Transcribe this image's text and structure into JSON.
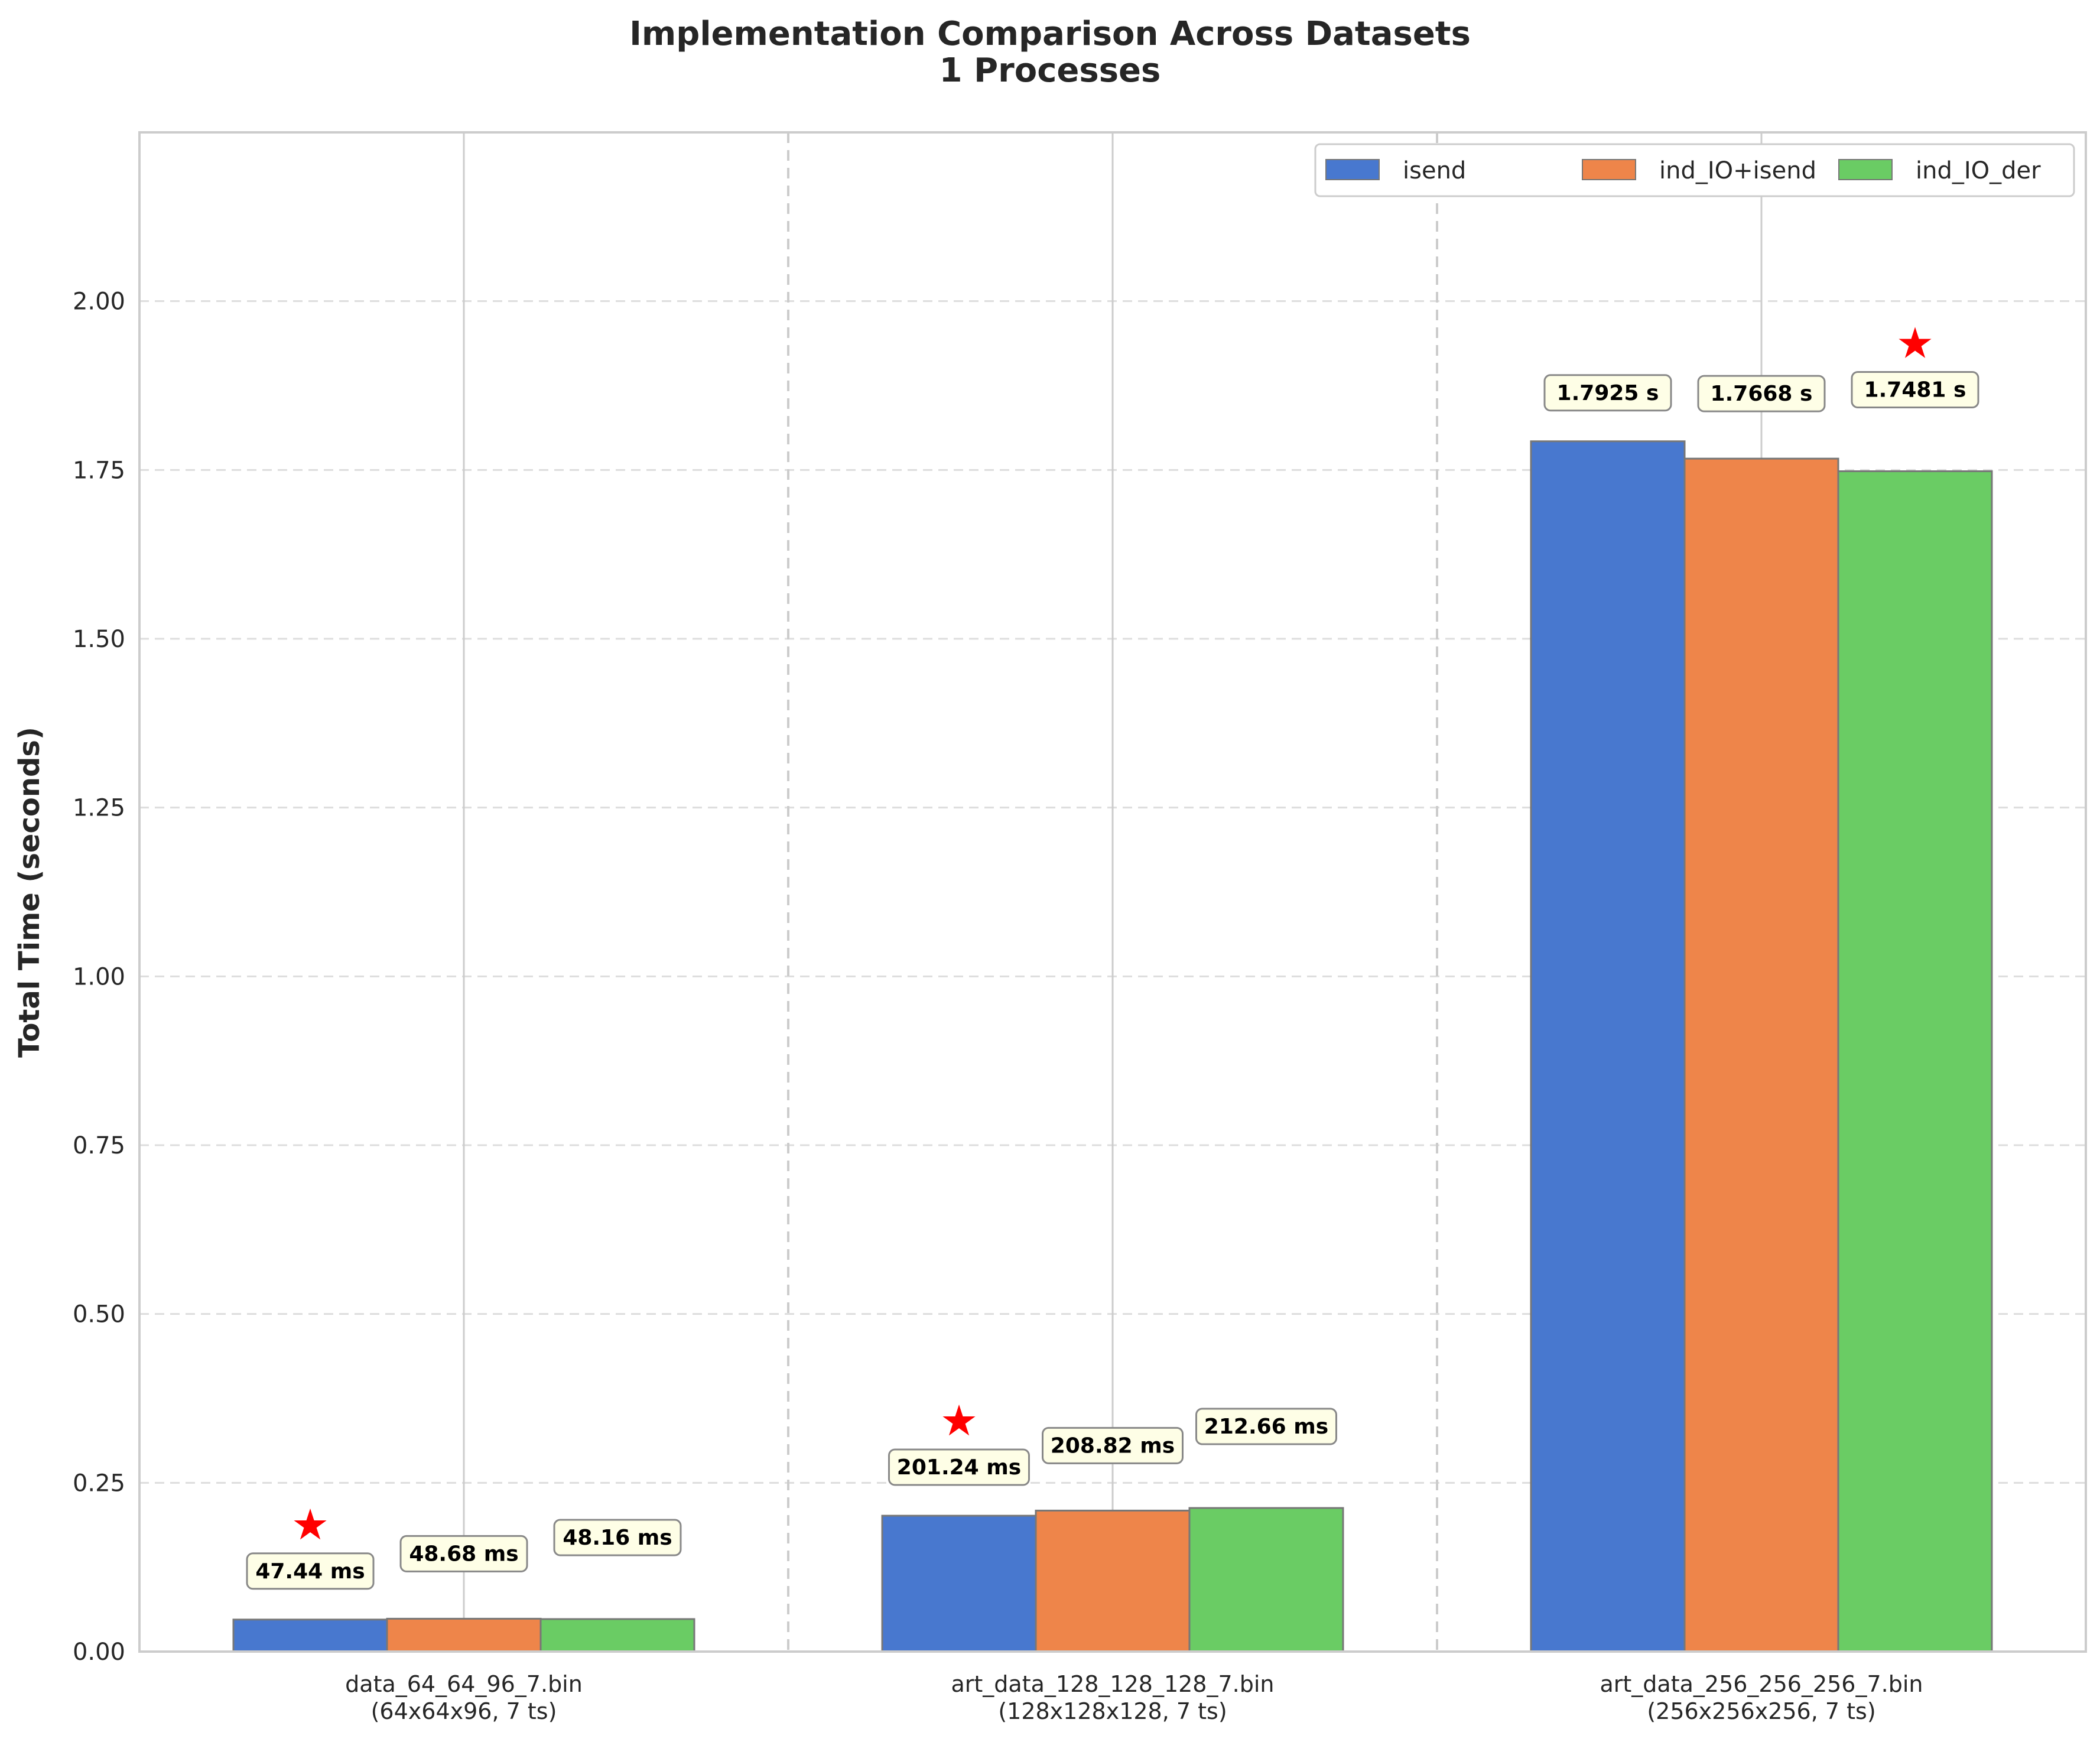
{
  "chart_data": {
    "type": "bar",
    "title": "Implementation Comparison Across Datasets",
    "subtitle": "1 Processes",
    "ylabel": "Total Time (seconds)",
    "xlabel": "",
    "ylim": [
      0,
      2.25
    ],
    "yticks": [
      "0.00",
      "0.25",
      "0.50",
      "0.75",
      "1.00",
      "1.25",
      "1.50",
      "1.75",
      "2.00"
    ],
    "grid": "horizontal dashed",
    "legend_position": "top-right",
    "categories": [
      "data_64_64_96_7.bin",
      "art_data_128_128_128_7.bin",
      "art_data_256_256_256_7.bin"
    ],
    "category_sublabels": [
      "(64x64x96, 7 ts)",
      "(128x128x128, 7 ts)",
      "(256x256x256, 7 ts)"
    ],
    "series": [
      {
        "name": "isend",
        "color": "#4878cf",
        "values": [
          0.04744,
          0.20124,
          1.7925
        ],
        "labels": [
          "47.44 ms",
          "201.24 ms",
          "1.7925 s"
        ]
      },
      {
        "name": "ind_IO+isend",
        "color": "#ee854a",
        "values": [
          0.04868,
          0.20882,
          1.7668
        ],
        "labels": [
          "48.68 ms",
          "208.82 ms",
          "1.7668 s"
        ]
      },
      {
        "name": "ind_IO_der",
        "color": "#6acc64",
        "values": [
          0.04816,
          0.21266,
          1.7481
        ],
        "labels": [
          "48.16 ms",
          "212.66 ms",
          "1.7481 s"
        ]
      }
    ],
    "best_marker": "★",
    "best_per_category": [
      0,
      0,
      2
    ]
  }
}
